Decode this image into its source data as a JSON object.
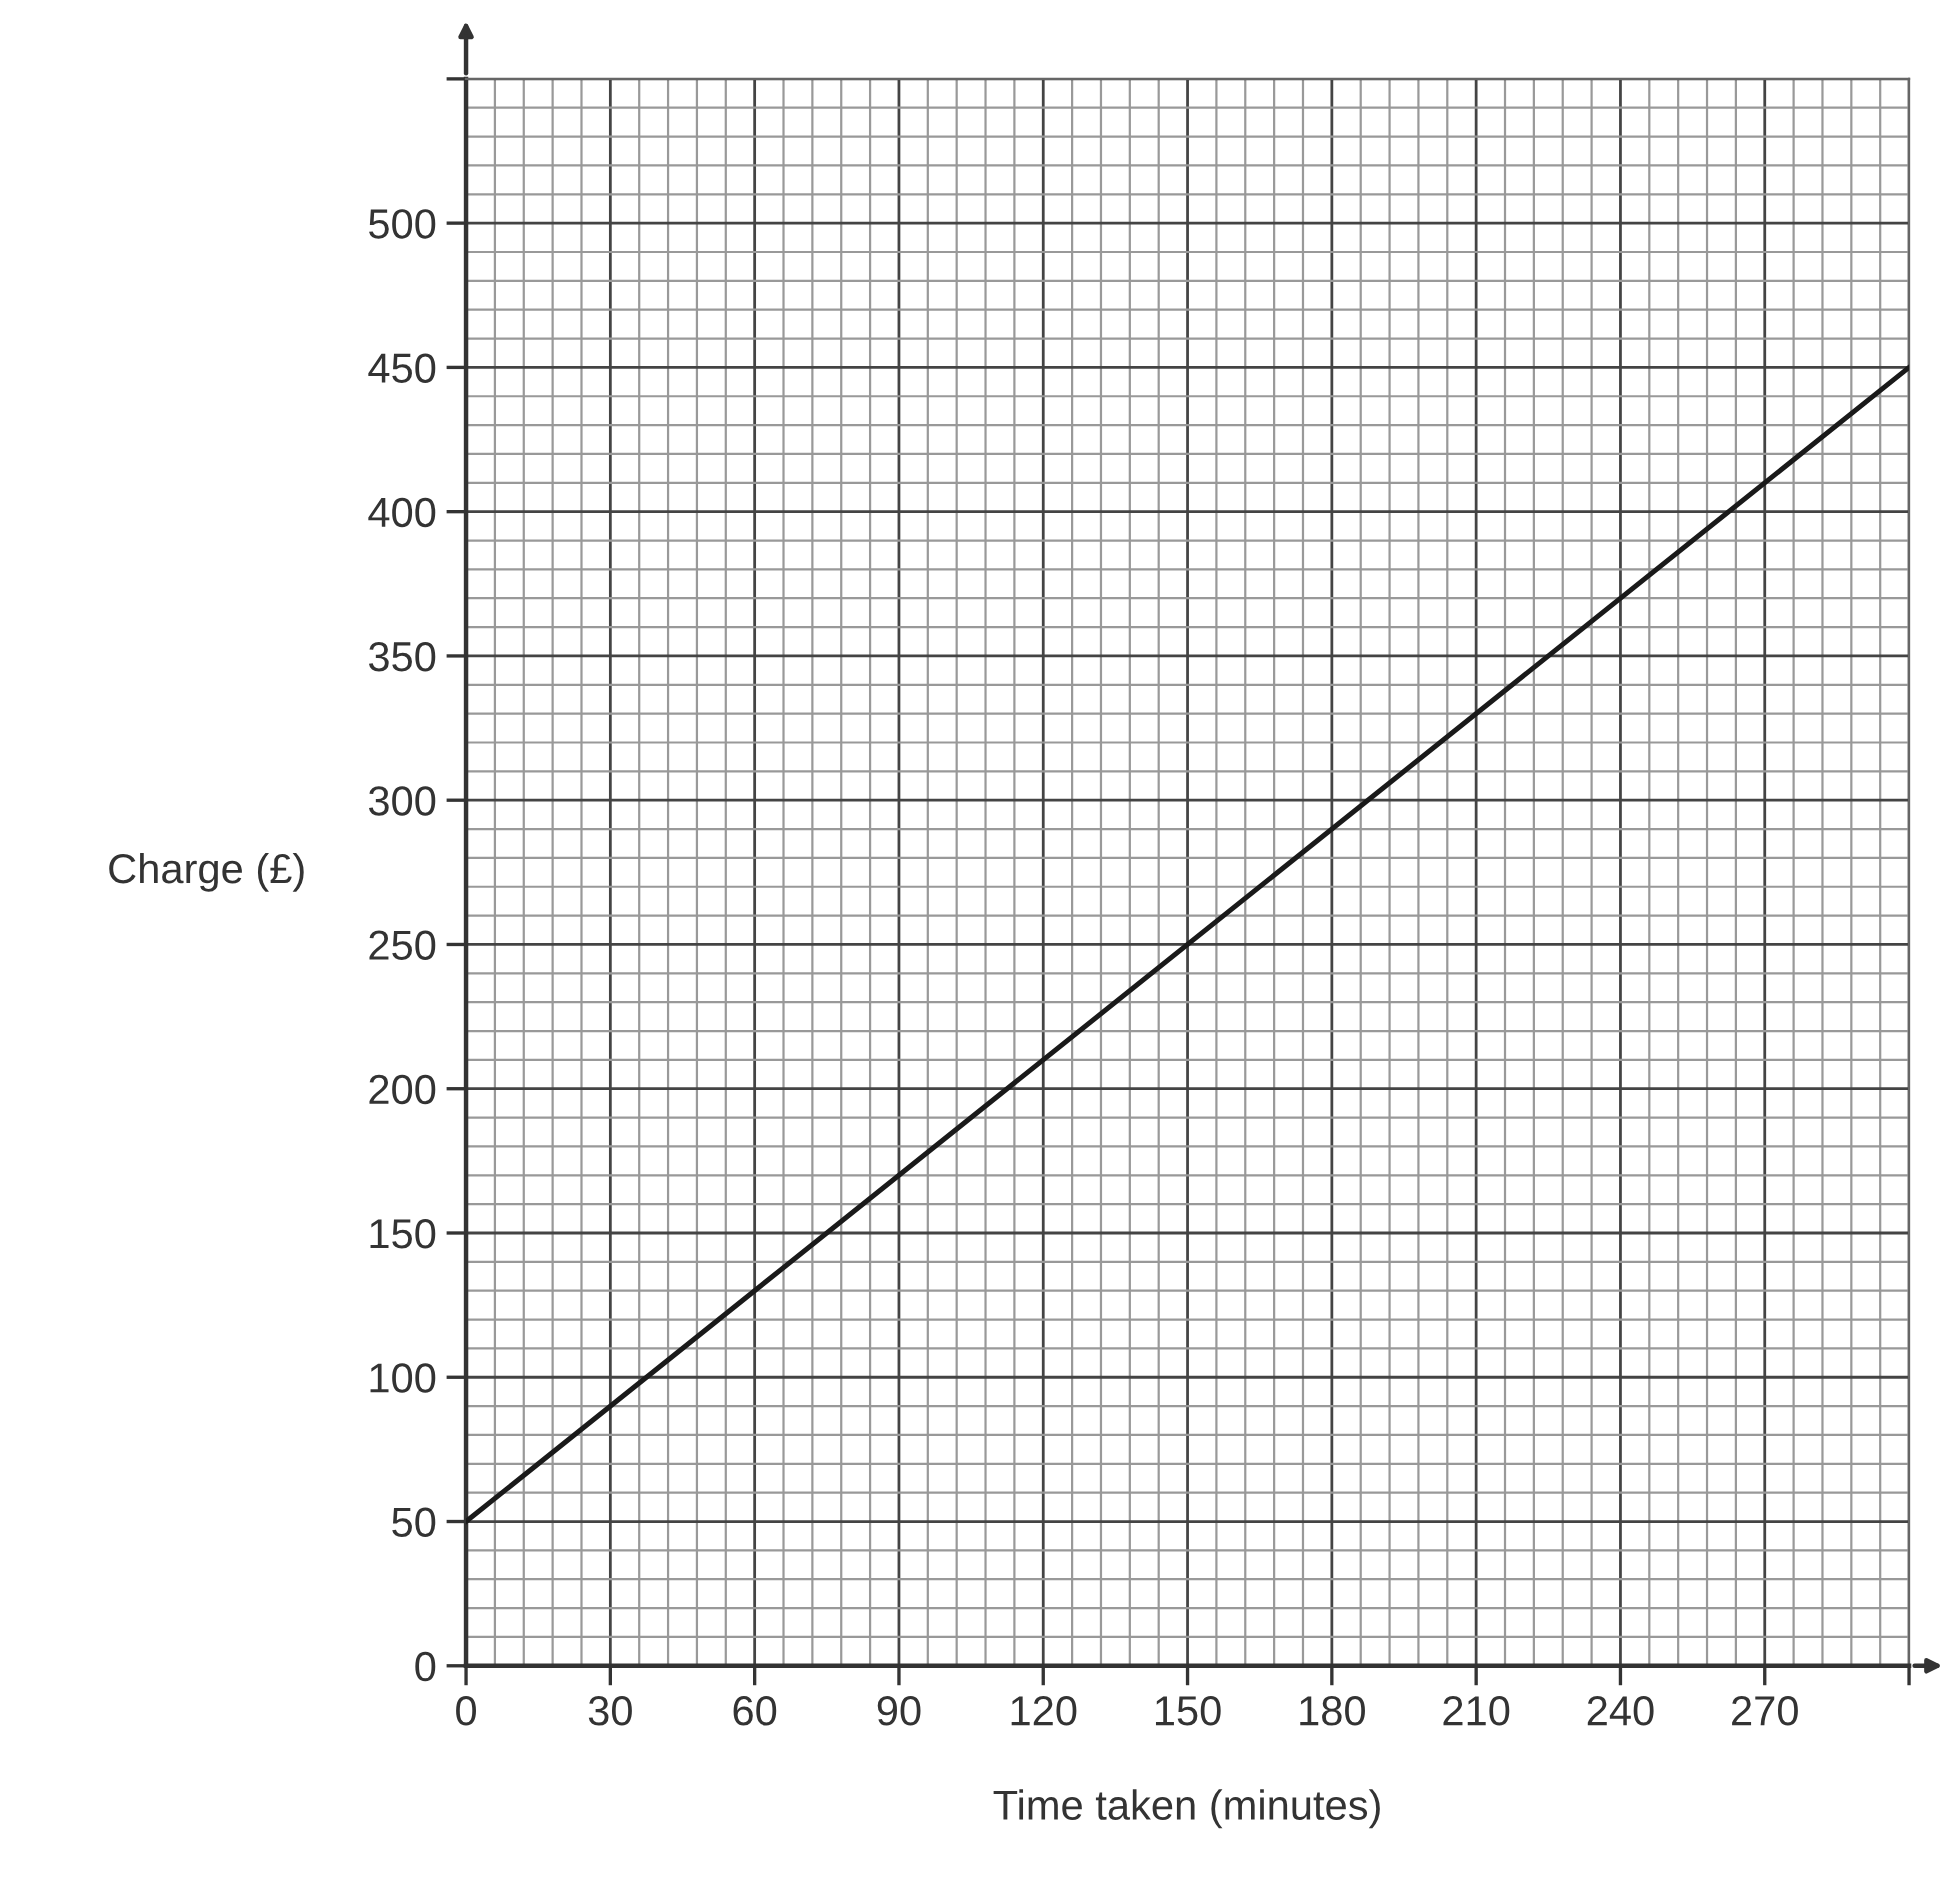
{
  "chart_data": {
    "type": "line",
    "xlabel": "Time taken (minutes)",
    "ylabel": "Charge (£)",
    "x": [
      0,
      300
    ],
    "series": [
      {
        "color": "#1a1a1a",
        "values": [
          50,
          450
        ]
      }
    ],
    "xlim": [
      0,
      300
    ],
    "ylim": [
      0,
      550
    ],
    "xticks": [
      0,
      30,
      60,
      90,
      120,
      150,
      180,
      210,
      240,
      270,
      {
        "value": 300,
        "label": null
      }
    ],
    "yticks": [
      0,
      50,
      100,
      150,
      200,
      250,
      300,
      350,
      400,
      450,
      500,
      {
        "value": 550,
        "label": null
      }
    ],
    "grid": true,
    "marker": "none",
    "line_style": "solid"
  }
}
